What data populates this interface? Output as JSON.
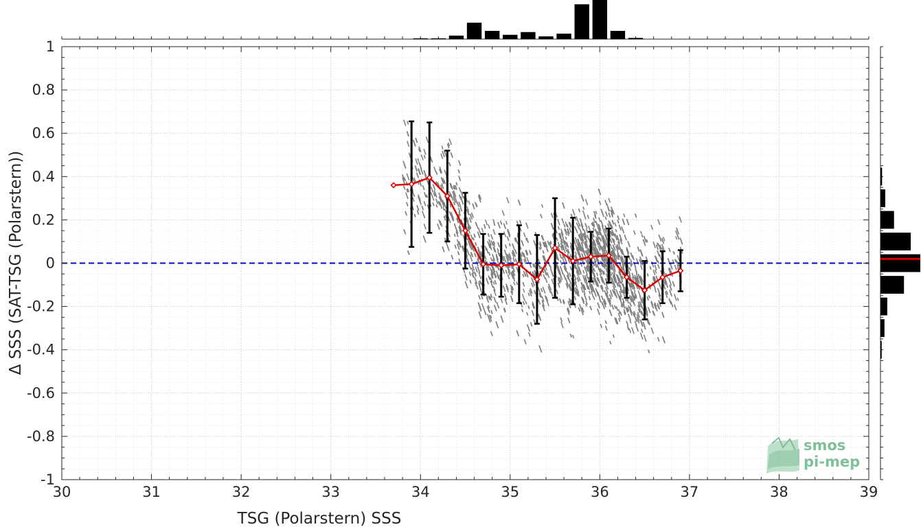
{
  "chart_data": {
    "type": "scatter",
    "title": "",
    "xlabel": "TSG (Polarstern) SSS",
    "ylabel": "Δ SSS (SAT-TSG (Polarstern))",
    "xlim": [
      30,
      39
    ],
    "ylim": [
      -1,
      1
    ],
    "xticks": [
      30,
      31,
      32,
      33,
      34,
      35,
      36,
      37,
      38,
      39
    ],
    "yticks": [
      -1,
      -0.8,
      -0.6,
      -0.4,
      -0.2,
      0,
      0.2,
      0.4,
      0.6,
      0.8,
      1
    ],
    "grid": true,
    "minor_grid": true,
    "reference_line": {
      "y": 0,
      "color": "#0000cc",
      "style": "dashed"
    },
    "scatter_cloud": {
      "color": "#808080",
      "note_x_range": [
        33.8,
        36.9
      ],
      "trend": "negative slope, densest near 36.0"
    },
    "binned_mean": {
      "color": "#dd0000",
      "errorbar_color": "#000000",
      "x": [
        33.7,
        33.9,
        34.1,
        34.3,
        34.5,
        34.7,
        34.9,
        35.1,
        35.3,
        35.5,
        35.7,
        35.9,
        36.1,
        36.3,
        36.5,
        36.7,
        36.9
      ],
      "y": [
        0.36,
        0.365,
        0.395,
        0.31,
        0.15,
        -0.005,
        -0.01,
        -0.005,
        -0.075,
        0.07,
        0.01,
        0.03,
        0.035,
        -0.065,
        -0.125,
        -0.065,
        -0.035
      ],
      "err": [
        0,
        0.29,
        0.255,
        0.21,
        0.175,
        0.14,
        0.145,
        0.18,
        0.205,
        0.23,
        0.2,
        0.115,
        0.125,
        0.095,
        0.135,
        0.12,
        0.095
      ]
    },
    "top_histogram": {
      "color": "#000000",
      "bin_centers": [
        34.0,
        34.2,
        34.4,
        34.6,
        34.8,
        35.0,
        35.2,
        35.4,
        35.6,
        35.8,
        36.0,
        36.2,
        36.4,
        36.6
      ],
      "values": [
        0.02,
        0.02,
        0.09,
        0.42,
        0.21,
        0.11,
        0.18,
        0.07,
        0.14,
        0.89,
        1.0,
        0.21,
        0.03,
        0.0
      ]
    },
    "right_histogram": {
      "color": "#000000",
      "median_color": "#dd0000",
      "median_y": 0.02,
      "bin_centers": [
        0.4,
        0.3,
        0.2,
        0.1,
        0.0,
        -0.1,
        -0.2,
        -0.3,
        -0.4
      ],
      "values": [
        0.04,
        0.12,
        0.34,
        0.76,
        1.0,
        0.59,
        0.17,
        0.1,
        0.03
      ]
    }
  },
  "logo": {
    "line1": "smos",
    "line2": "pi-mep",
    "color": "#7fbf9a"
  }
}
